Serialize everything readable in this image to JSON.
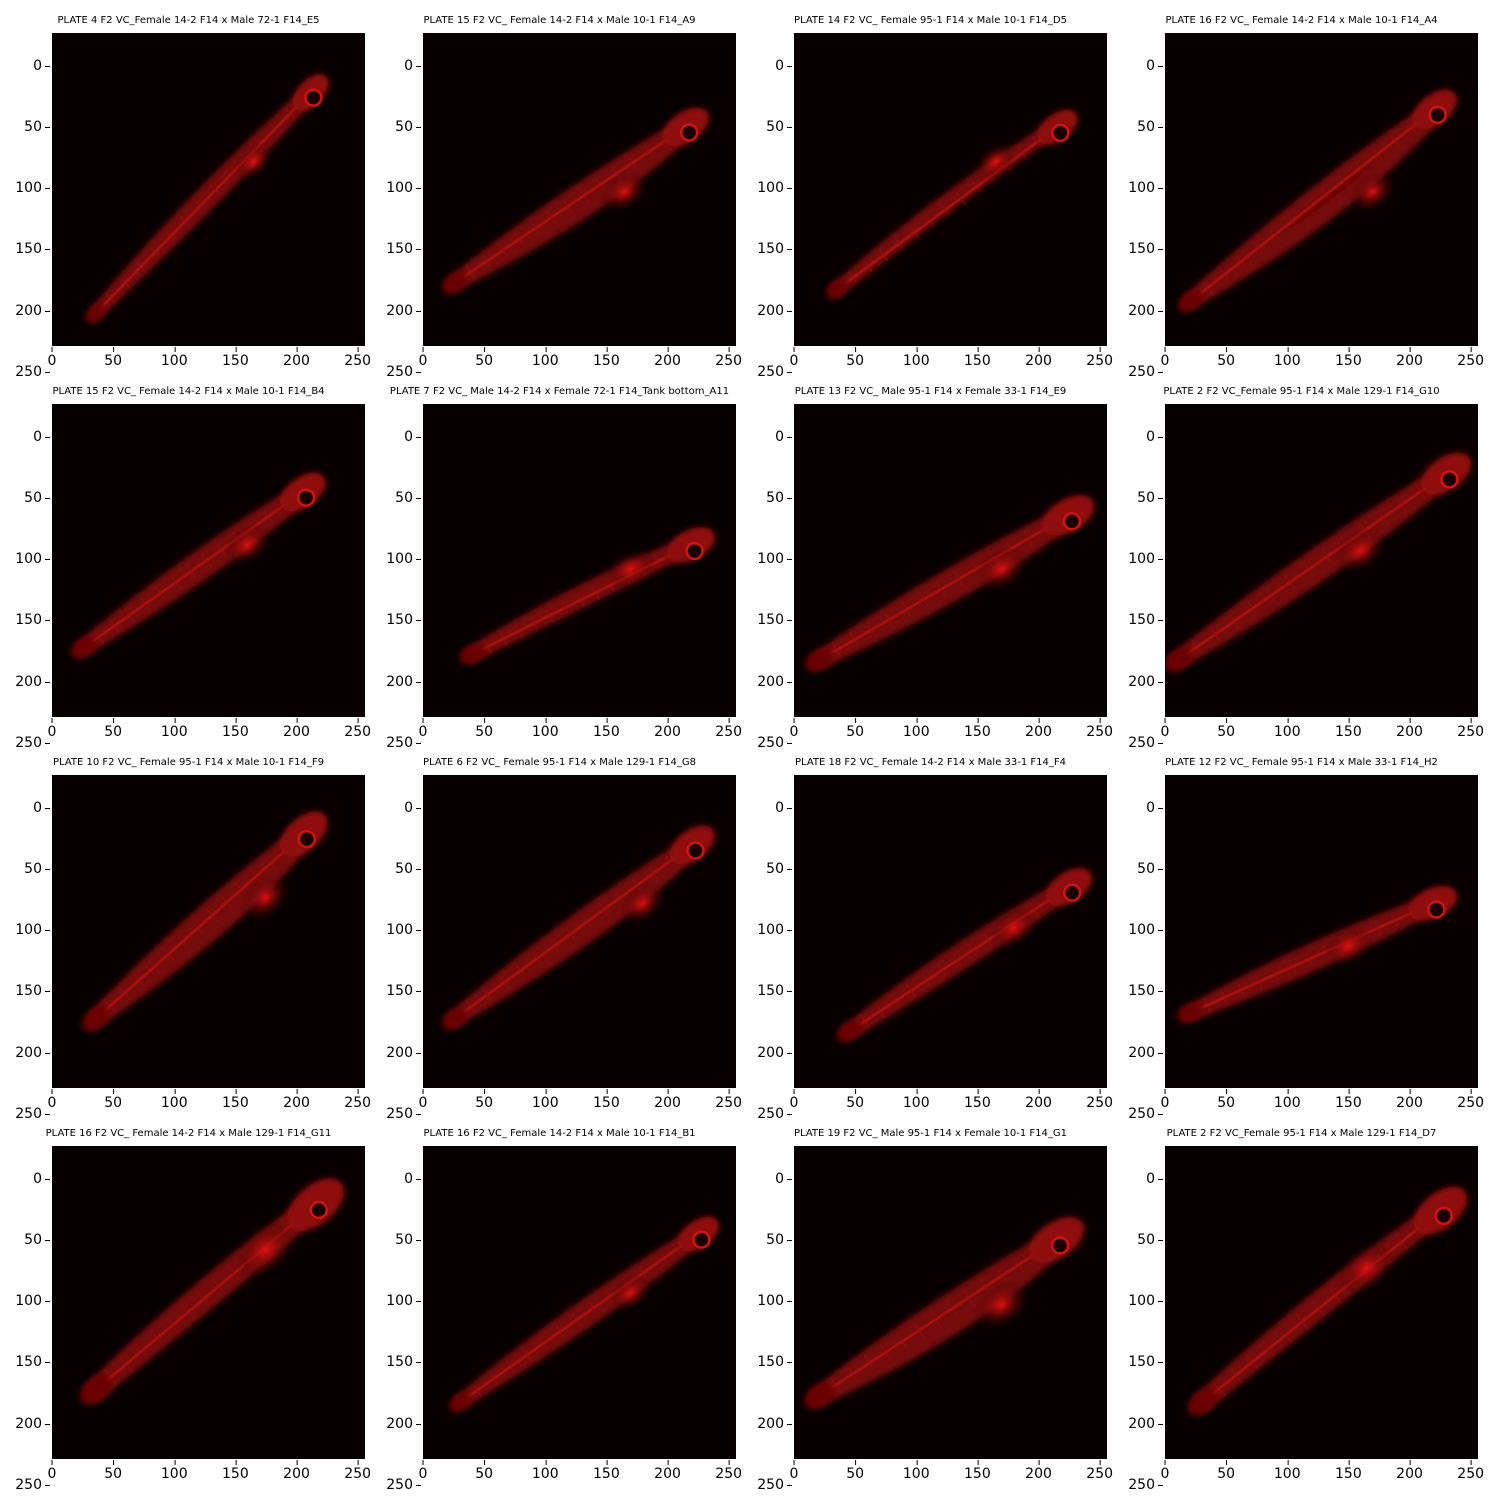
{
  "figure": {
    "ticks": [
      "0",
      "50",
      "100",
      "150",
      "200",
      "250"
    ],
    "tick_values": [
      0,
      50,
      100,
      150,
      200,
      250
    ],
    "axis_max": 256,
    "colormap": "red-on-black",
    "panels": [
      {
        "title": "PLATE 4 F2 VC_Female 14-2 F14 x Male 72-1 F14_E5",
        "fish": {
          "head": [
            220,
            40
          ],
          "tail": [
            35,
            230
          ],
          "belly": [
            165,
            105
          ],
          "spread": 0.85
        }
      },
      {
        "title": "PLATE 15 F2 VC_ Female 14-2 F14 x Male 10-1 F14_A9",
        "fish": {
          "head": [
            225,
            70
          ],
          "tail": [
            25,
            205
          ],
          "belly": [
            165,
            130
          ],
          "spread": 1.0
        }
      },
      {
        "title": "PLATE 14 F2 VC_ Female 95-1 F14 x Male 10-1 F14_D5",
        "fish": {
          "head": [
            225,
            70
          ],
          "tail": [
            35,
            210
          ],
          "belly": [
            165,
            105
          ],
          "spread": 0.9
        }
      },
      {
        "title": "PLATE 16 F2 VC_ Female 14-2 F14 x Male 10-1 F14_A4",
        "fish": {
          "head": [
            230,
            55
          ],
          "tail": [
            20,
            220
          ],
          "belly": [
            170,
            130
          ],
          "spread": 1.0
        }
      },
      {
        "title": "PLATE 15 F2 VC_ Female 14-2 F14 x Male 10-1 F14_B4",
        "fish": {
          "head": [
            215,
            65
          ],
          "tail": [
            25,
            200
          ],
          "belly": [
            160,
            115
          ],
          "spread": 1.0
        }
      },
      {
        "title": "PLATE 7 F2 VC_ Male 14-2 F14 x Female 72-1 F14_Tank bottom_A11",
        "fish": {
          "head": [
            230,
            110
          ],
          "tail": [
            40,
            205
          ],
          "belly": [
            170,
            135
          ],
          "spread": 1.0
        }
      },
      {
        "title": "PLATE 13 F2 VC_ Male 95-1 F14 x Female 33-1 F14_E9",
        "fish": {
          "head": [
            235,
            85
          ],
          "tail": [
            20,
            210
          ],
          "belly": [
            170,
            135
          ],
          "spread": 1.1
        }
      },
      {
        "title": "PLATE 2 F2 VC_Female 95-1 F14 x Male 129-1 F14_G10",
        "fish": {
          "head": [
            240,
            50
          ],
          "tail": [
            10,
            210
          ],
          "belly": [
            160,
            120
          ],
          "spread": 1.1
        }
      },
      {
        "title": "PLATE 10 F2 VC_ Female 95-1 F14 x Male 10-1 F14_F9",
        "fish": {
          "head": [
            215,
            40
          ],
          "tail": [
            35,
            200
          ],
          "belly": [
            175,
            100
          ],
          "spread": 1.1
        }
      },
      {
        "title": "PLATE 6 F2 VC_ Female 95-1 F14 x Male 129-1 F14_G8",
        "fish": {
          "head": [
            230,
            50
          ],
          "tail": [
            25,
            200
          ],
          "belly": [
            180,
            105
          ],
          "spread": 1.0
        }
      },
      {
        "title": "PLATE 18 F2 VC_ Female 14-2 F14 x Male 33-1 F14_F4",
        "fish": {
          "head": [
            235,
            85
          ],
          "tail": [
            45,
            210
          ],
          "belly": [
            180,
            125
          ],
          "spread": 1.0
        }
      },
      {
        "title": "PLATE 12 F2 VC_ Female 95-1 F14 x Male 33-1 F14_H2",
        "fish": {
          "head": [
            230,
            100
          ],
          "tail": [
            20,
            195
          ],
          "belly": [
            150,
            140
          ],
          "spread": 1.0
        }
      },
      {
        "title": "PLATE 16 F2 VC_ Female 14-2 F14 x Male 129-1 F14_G11",
        "fish": {
          "head": [
            225,
            40
          ],
          "tail": [
            35,
            200
          ],
          "belly": [
            175,
            85
          ],
          "spread": 1.3
        }
      },
      {
        "title": "PLATE 16 F2 VC_ Female 14-2 F14 x Male 10-1 F14_B1",
        "fish": {
          "head": [
            235,
            65
          ],
          "tail": [
            30,
            210
          ],
          "belly": [
            170,
            120
          ],
          "spread": 0.9
        }
      },
      {
        "title": "PLATE 19 F2 VC_ Male 95-1 F14 x Female 10-1 F14_G1",
        "fish": {
          "head": [
            225,
            70
          ],
          "tail": [
            20,
            205
          ],
          "belly": [
            170,
            130
          ],
          "spread": 1.2
        }
      },
      {
        "title": "PLATE 2 F2 VC_Female 95-1 F14 x Male 129-1 F14_D7",
        "fish": {
          "head": [
            235,
            45
          ],
          "tail": [
            30,
            210
          ],
          "belly": [
            165,
            100
          ],
          "spread": 1.2
        }
      }
    ]
  }
}
